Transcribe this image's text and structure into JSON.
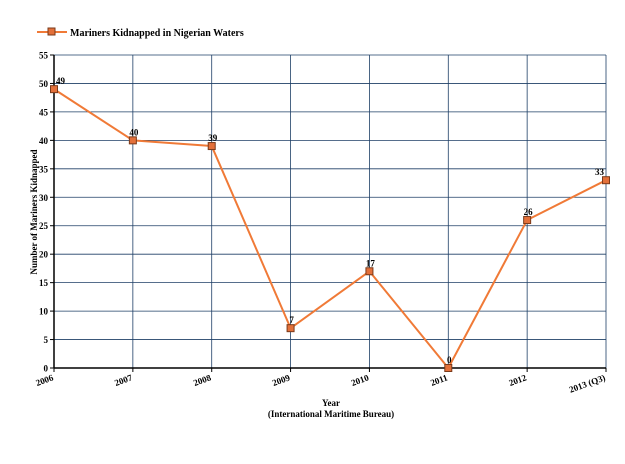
{
  "chart_data": {
    "type": "line",
    "categories": [
      "2006",
      "2007",
      "2008",
      "2009",
      "2010",
      "2011",
      "2012",
      "2013 (Q3)"
    ],
    "series": [
      {
        "name": "Mariners Kidnapped in Nigerian Waters",
        "values": [
          49,
          40,
          39,
          7,
          17,
          0,
          26,
          33
        ]
      }
    ],
    "data_labels": [
      "49",
      "40",
      "39",
      "7",
      "17",
      "0",
      "26",
      "33"
    ],
    "title": "",
    "xlabel": "Year",
    "xlabel_sub": "(International Maritime Bureau)",
    "ylabel": "Number of Mariners Kidnapped",
    "ylim": [
      0,
      55
    ],
    "yticks": [
      "0",
      "5",
      "10",
      "15",
      "20",
      "25",
      "30",
      "35",
      "40",
      "45",
      "50",
      "55"
    ],
    "grid": true,
    "legend_position": "top-left",
    "colors": {
      "line": "#f07a37",
      "marker_fill": "#e3703a",
      "marker_edge": "#7a3a1a",
      "grid": "#1e3f66",
      "axis": "#000000"
    }
  }
}
